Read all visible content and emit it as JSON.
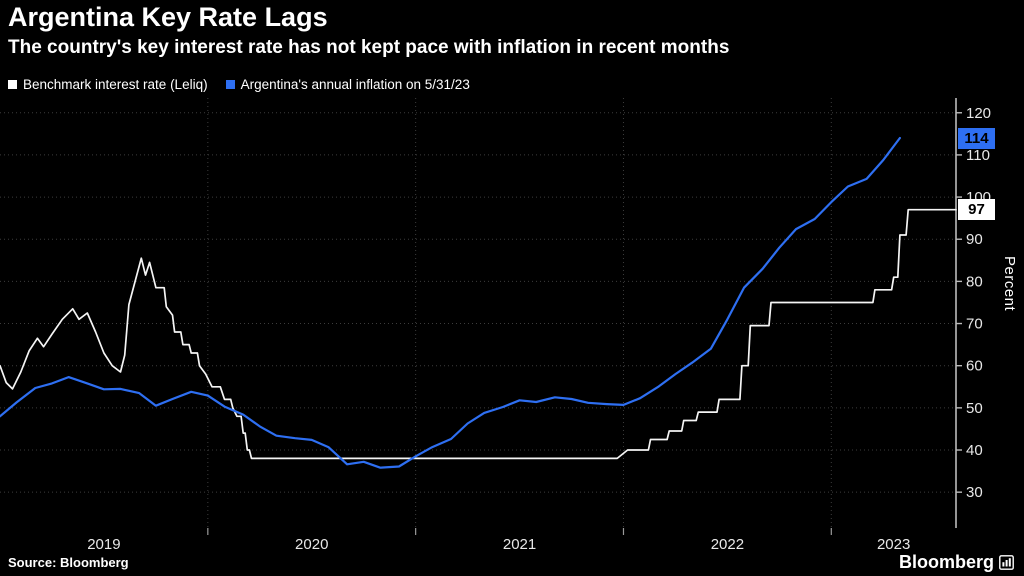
{
  "header": {
    "title": "Argentina Key Rate Lags",
    "subtitle": "The country's key interest rate has not kept pace with inflation in recent months"
  },
  "legend": [
    {
      "label": "Benchmark interest rate (Leliq)",
      "color": "#ffffff"
    },
    {
      "label": "Argentina's annual inflation on 5/31/23",
      "color": "#2e6ff2"
    }
  ],
  "footer": {
    "source": "Source: Bloomberg",
    "brand": "Bloomberg",
    "logo_icon": "terminal-chart-icon"
  },
  "colors": {
    "background": "#000000",
    "grid": "#3c3c3c",
    "axis": "#bbbbbb",
    "tick_text": "#e8e8e8",
    "benchmark_line": "#f5f5f5",
    "inflation_line": "#2e6ff2"
  },
  "chart_data": {
    "type": "line",
    "title": "Argentina Key Rate Lags",
    "xlabel": "",
    "ylabel": "Percent",
    "ylim": [
      21.5,
      123.5
    ],
    "yticks": [
      30,
      40,
      50,
      60,
      70,
      80,
      90,
      100,
      110,
      120
    ],
    "xlim": [
      2019.0,
      2023.6
    ],
    "x_gridlines": [
      2020,
      2021,
      2022,
      2023
    ],
    "x_ticks": [
      {
        "label": "2019",
        "center": 2019.5
      },
      {
        "label": "2020",
        "center": 2020.5
      },
      {
        "label": "2021",
        "center": 2021.5
      },
      {
        "label": "2022",
        "center": 2022.5
      },
      {
        "label": "2023",
        "center": 2023.3
      }
    ],
    "grid": "dotted",
    "legend_position": "top-left",
    "series": [
      {
        "name": "Benchmark interest rate (Leliq)",
        "color": "#f5f5f5",
        "width": 1.7,
        "end_label": "97",
        "end_label_bg": "#ffffff",
        "points": [
          [
            2019.0,
            60
          ],
          [
            2019.03,
            56
          ],
          [
            2019.06,
            54.5
          ],
          [
            2019.1,
            58.5
          ],
          [
            2019.14,
            63.5
          ],
          [
            2019.18,
            66.5
          ],
          [
            2019.21,
            64.5
          ],
          [
            2019.25,
            67.5
          ],
          [
            2019.3,
            71
          ],
          [
            2019.35,
            73.5
          ],
          [
            2019.38,
            71
          ],
          [
            2019.42,
            72.5
          ],
          [
            2019.46,
            68
          ],
          [
            2019.5,
            63
          ],
          [
            2019.54,
            60
          ],
          [
            2019.58,
            58.5
          ],
          [
            2019.6,
            62.5
          ],
          [
            2019.62,
            74.5
          ],
          [
            2019.65,
            80
          ],
          [
            2019.68,
            85.5
          ],
          [
            2019.7,
            81.5
          ],
          [
            2019.72,
            84.5
          ],
          [
            2019.75,
            78.5
          ],
          [
            2019.79,
            78.5
          ],
          [
            2019.8,
            74
          ],
          [
            2019.83,
            72
          ],
          [
            2019.84,
            68
          ],
          [
            2019.87,
            68
          ],
          [
            2019.88,
            65
          ],
          [
            2019.91,
            65
          ],
          [
            2019.92,
            63
          ],
          [
            2019.95,
            63
          ],
          [
            2019.96,
            60
          ],
          [
            2019.99,
            58
          ],
          [
            2020.02,
            55
          ],
          [
            2020.06,
            55
          ],
          [
            2020.08,
            52
          ],
          [
            2020.11,
            52
          ],
          [
            2020.12,
            50
          ],
          [
            2020.14,
            48
          ],
          [
            2020.16,
            48
          ],
          [
            2020.17,
            44
          ],
          [
            2020.18,
            44
          ],
          [
            2020.19,
            40
          ],
          [
            2020.2,
            40
          ],
          [
            2020.21,
            38
          ],
          [
            2021.97,
            38
          ],
          [
            2022.02,
            40
          ],
          [
            2022.12,
            40
          ],
          [
            2022.13,
            42.5
          ],
          [
            2022.21,
            42.5
          ],
          [
            2022.22,
            44.5
          ],
          [
            2022.28,
            44.5
          ],
          [
            2022.29,
            47
          ],
          [
            2022.35,
            47
          ],
          [
            2022.36,
            49
          ],
          [
            2022.45,
            49
          ],
          [
            2022.46,
            52
          ],
          [
            2022.56,
            52
          ],
          [
            2022.57,
            60
          ],
          [
            2022.6,
            60
          ],
          [
            2022.61,
            69.5
          ],
          [
            2022.7,
            69.5
          ],
          [
            2022.71,
            75
          ],
          [
            2023.2,
            75
          ],
          [
            2023.21,
            78
          ],
          [
            2023.29,
            78
          ],
          [
            2023.3,
            81
          ],
          [
            2023.32,
            81
          ],
          [
            2023.33,
            91
          ],
          [
            2023.36,
            91
          ],
          [
            2023.37,
            97
          ],
          [
            2023.6,
            97
          ]
        ]
      },
      {
        "name": "Argentina's annual inflation on 5/31/23",
        "color": "#2e6ff2",
        "width": 2.2,
        "end_label": "114",
        "end_label_bg": "#2e6ff2",
        "points": [
          [
            2019.0,
            48
          ],
          [
            2019.08,
            51.3
          ],
          [
            2019.17,
            54.7
          ],
          [
            2019.25,
            55.8
          ],
          [
            2019.33,
            57.3
          ],
          [
            2019.42,
            55.8
          ],
          [
            2019.5,
            54.4
          ],
          [
            2019.58,
            54.5
          ],
          [
            2019.67,
            53.5
          ],
          [
            2019.75,
            50.5
          ],
          [
            2019.83,
            52.1
          ],
          [
            2019.92,
            53.8
          ],
          [
            2020.0,
            52.9
          ],
          [
            2020.08,
            50.3
          ],
          [
            2020.17,
            48.4
          ],
          [
            2020.25,
            45.6
          ],
          [
            2020.33,
            43.4
          ],
          [
            2020.42,
            42.8
          ],
          [
            2020.5,
            42.4
          ],
          [
            2020.58,
            40.7
          ],
          [
            2020.67,
            36.6
          ],
          [
            2020.75,
            37.2
          ],
          [
            2020.83,
            35.8
          ],
          [
            2020.92,
            36.1
          ],
          [
            2021.0,
            38.5
          ],
          [
            2021.08,
            40.7
          ],
          [
            2021.17,
            42.6
          ],
          [
            2021.25,
            46.3
          ],
          [
            2021.33,
            48.8
          ],
          [
            2021.42,
            50.2
          ],
          [
            2021.5,
            51.8
          ],
          [
            2021.58,
            51.4
          ],
          [
            2021.67,
            52.5
          ],
          [
            2021.75,
            52.1
          ],
          [
            2021.83,
            51.2
          ],
          [
            2021.92,
            50.9
          ],
          [
            2022.0,
            50.7
          ],
          [
            2022.08,
            52.3
          ],
          [
            2022.17,
            55.1
          ],
          [
            2022.25,
            58.0
          ],
          [
            2022.33,
            60.7
          ],
          [
            2022.42,
            64.0
          ],
          [
            2022.5,
            71.0
          ],
          [
            2022.58,
            78.5
          ],
          [
            2022.67,
            83.0
          ],
          [
            2022.75,
            88.0
          ],
          [
            2022.83,
            92.4
          ],
          [
            2022.92,
            94.8
          ],
          [
            2023.0,
            98.8
          ],
          [
            2023.08,
            102.5
          ],
          [
            2023.17,
            104.3
          ],
          [
            2023.25,
            108.8
          ],
          [
            2023.33,
            114.0
          ]
        ]
      }
    ]
  }
}
